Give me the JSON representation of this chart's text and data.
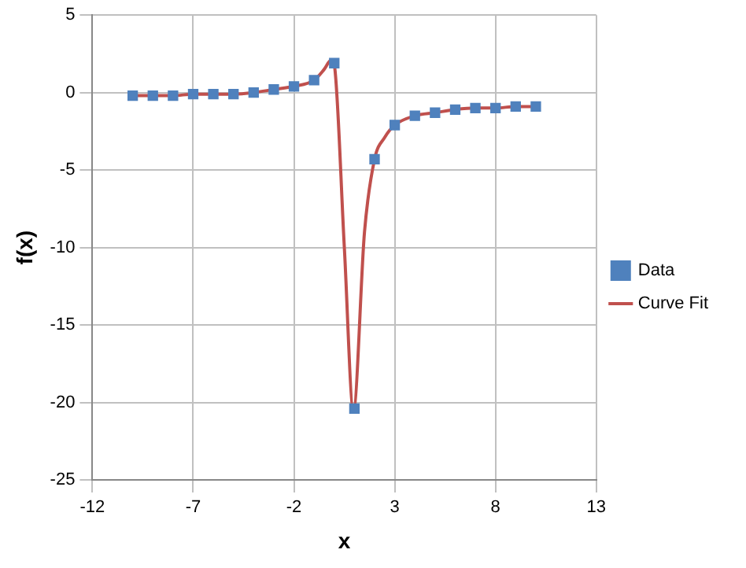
{
  "chart_data": {
    "type": "scatter",
    "xlabel": "x",
    "ylabel": "f(x)",
    "xlim": [
      -12,
      13
    ],
    "xticks": [
      -12,
      -7,
      -2,
      3,
      8,
      13
    ],
    "ylim": [
      -25,
      5
    ],
    "yticks": [
      -25,
      -20,
      -15,
      -10,
      -5,
      0,
      5
    ],
    "grid": true,
    "legend": "right",
    "series": [
      {
        "name": "Data",
        "type": "scatter",
        "color": "#4f81bd",
        "marker": "square",
        "x": [
          -10,
          -9,
          -8,
          -7,
          -6,
          -5,
          -4,
          -3,
          -2,
          -1,
          0,
          1,
          2,
          3,
          4,
          5,
          6,
          7,
          8,
          9,
          10
        ],
        "values": [
          -0.2,
          -0.2,
          -0.2,
          -0.1,
          -0.1,
          -0.1,
          0,
          0.2,
          0.4,
          0.8,
          1.9,
          -20.4,
          -4.3,
          -2.1,
          -1.5,
          -1.3,
          -1.1,
          -1,
          -1,
          -0.9,
          -0.9
        ]
      },
      {
        "name": "Curve Fit",
        "type": "line",
        "color": "#c0504d",
        "marker": "none",
        "x": [
          -10,
          -9,
          -8,
          -7,
          -6,
          -5,
          -4,
          -3,
          -2,
          -1,
          -0.5,
          -0.15,
          0,
          0.5,
          0.95,
          1.5,
          2,
          2.5,
          3,
          4,
          5,
          6,
          7,
          8,
          9,
          10
        ],
        "values": [
          -0.2,
          -0.2,
          -0.2,
          -0.1,
          -0.1,
          -0.1,
          0,
          0.2,
          0.4,
          0.8,
          1.5,
          2.1,
          1.8,
          -10,
          -20.5,
          -9,
          -4.3,
          -2.9,
          -2.1,
          -1.5,
          -1.3,
          -1.1,
          -1,
          -1,
          -0.9,
          -0.9
        ]
      }
    ]
  }
}
